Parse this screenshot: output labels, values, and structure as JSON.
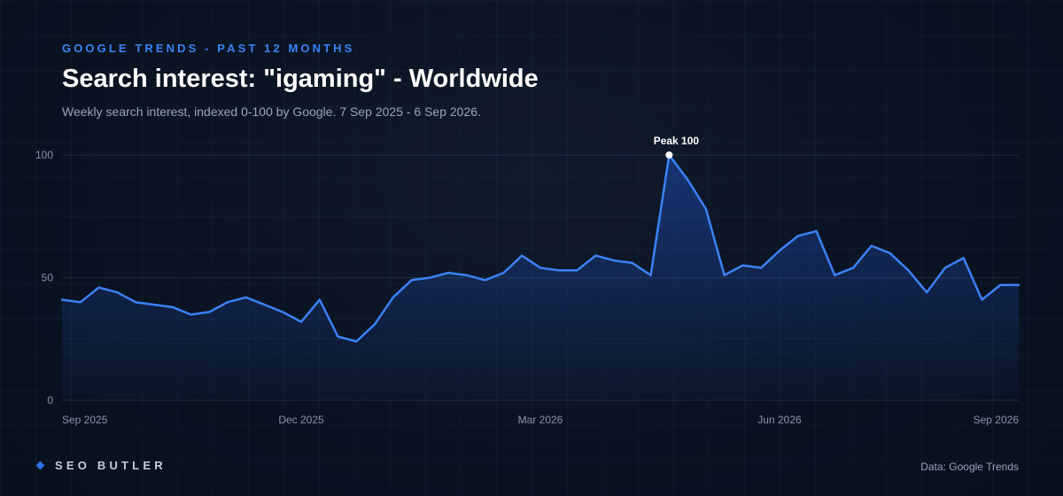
{
  "header": {
    "eyebrow": "GOOGLE TRENDS - PAST 12 MONTHS",
    "title": "Search interest: \"igaming\" - Worldwide",
    "subtitle": "Weekly search interest, indexed 0-100 by Google. 7 Sep 2025 - 6 Sep 2026."
  },
  "footer": {
    "brand": "SEO BUTLER",
    "source": "Data: Google Trends"
  },
  "colors": {
    "line": "#3b82f6",
    "accent": "#3b82f6",
    "background": "#0a1322"
  },
  "chart_data": {
    "type": "area",
    "title": "Search interest: \"igaming\" - Worldwide",
    "xlabel": "",
    "ylabel": "",
    "ylim": [
      0,
      100
    ],
    "yticks": [
      0,
      50,
      100
    ],
    "grid": true,
    "xticks": [
      "Sep 2025",
      "Dec 2025",
      "Mar 2026",
      "Jun 2026",
      "Sep 2026"
    ],
    "x_range": [
      "2025-09-07",
      "2026-09-06"
    ],
    "series": [
      {
        "values": [
          41,
          40,
          46,
          44,
          40,
          39,
          38,
          35,
          36,
          40,
          42,
          39,
          36,
          32,
          41,
          26,
          24,
          31,
          42,
          49,
          50,
          52,
          51,
          49,
          52,
          59,
          54,
          53,
          53,
          59,
          57,
          56,
          51,
          100,
          90,
          78,
          51,
          55,
          54,
          61,
          67,
          69,
          51,
          54,
          63,
          60,
          53,
          44,
          54,
          58,
          41,
          47,
          47
        ]
      }
    ],
    "annotations": [
      {
        "label": "Peak 100",
        "index": 33,
        "value": 100
      }
    ]
  }
}
